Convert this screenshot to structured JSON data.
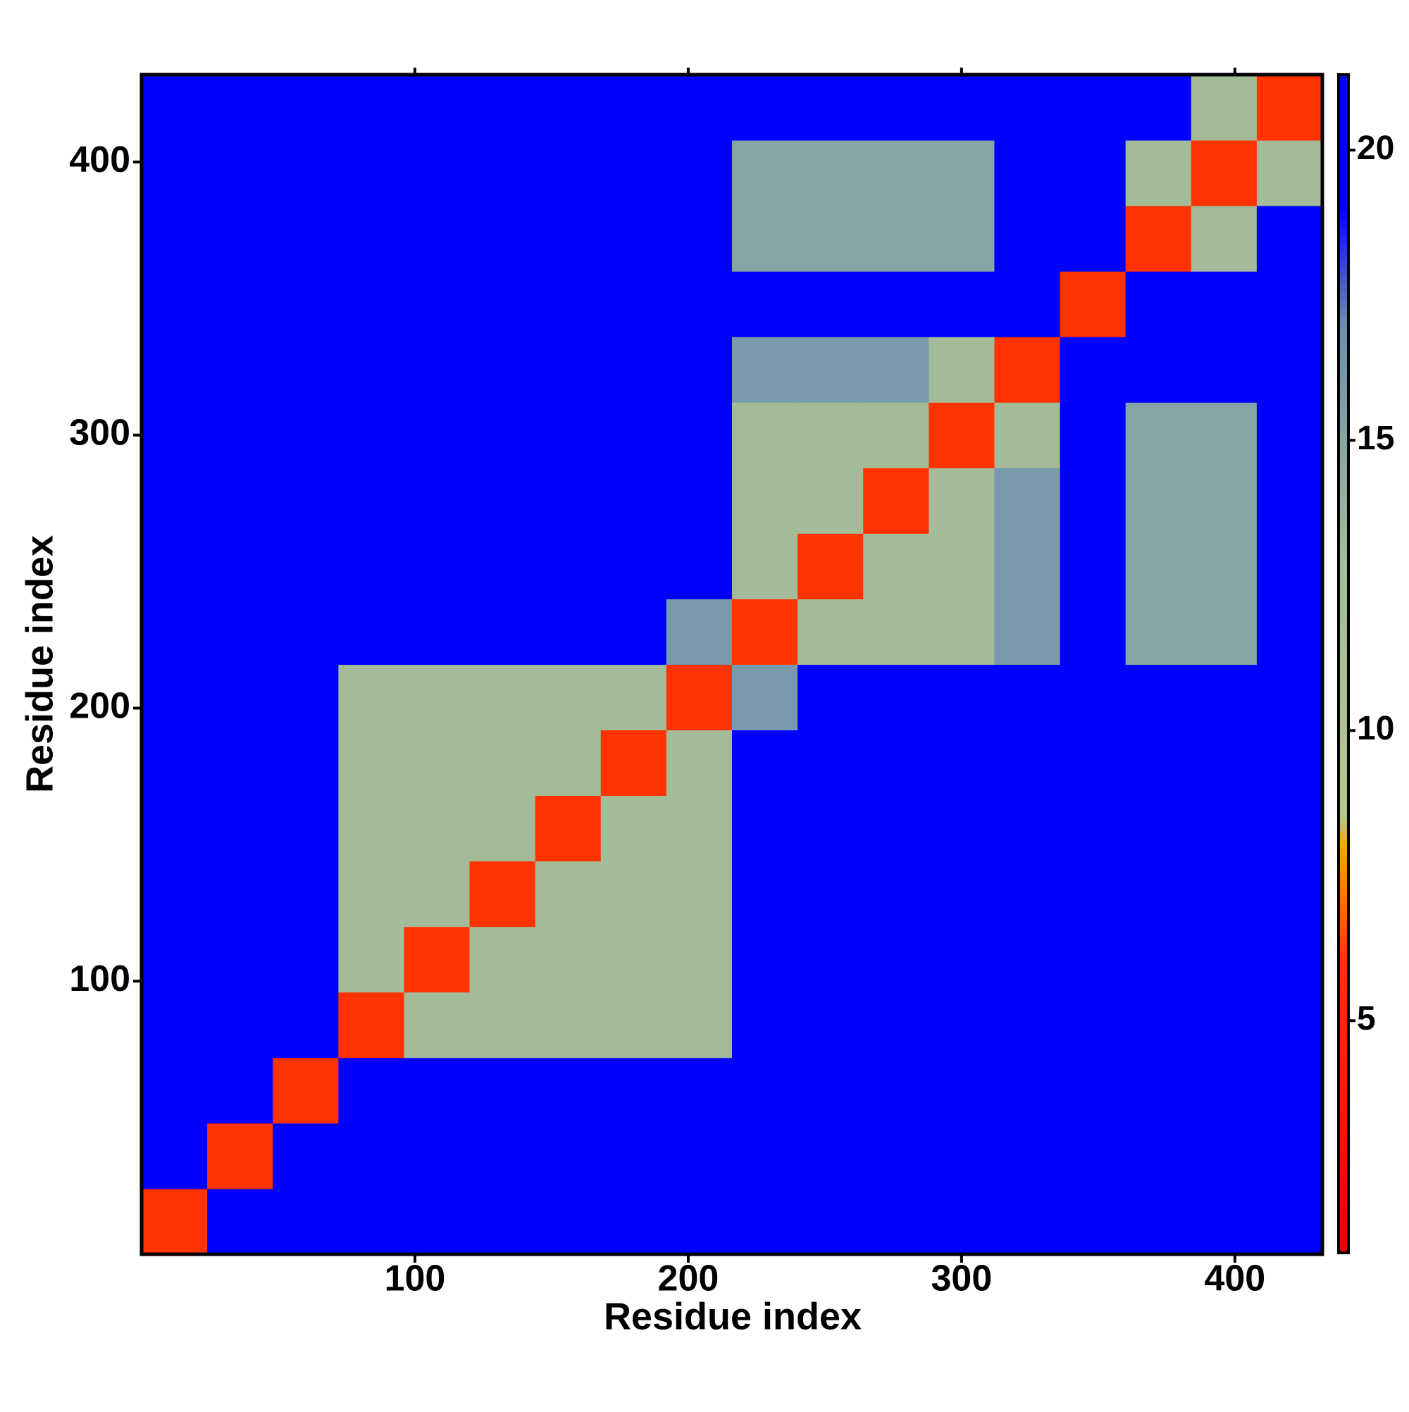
{
  "chart_data": {
    "type": "heatmap",
    "x_label": "Residue index",
    "y_label": "Residue index",
    "bins": [
      0,
      24,
      48,
      72,
      96,
      120,
      144,
      168,
      192,
      216,
      240,
      264,
      288,
      312,
      336,
      360,
      384,
      408,
      432
    ],
    "xlim": [
      0,
      432
    ],
    "ylim": [
      0,
      432
    ],
    "xticks": [
      100,
      200,
      300,
      400
    ],
    "yticks": [
      100,
      200,
      300,
      400
    ],
    "values": [
      [
        6,
        21,
        21,
        21,
        21,
        21,
        21,
        21,
        21,
        21,
        21,
        21,
        21,
        21,
        21,
        21,
        21,
        21
      ],
      [
        21,
        6,
        21,
        21,
        21,
        21,
        21,
        21,
        21,
        21,
        21,
        21,
        21,
        21,
        21,
        21,
        21,
        21
      ],
      [
        21,
        21,
        6,
        21,
        21,
        21,
        21,
        21,
        21,
        21,
        21,
        21,
        21,
        21,
        21,
        21,
        21,
        21
      ],
      [
        21,
        21,
        21,
        6,
        13,
        13,
        13,
        13,
        13,
        21,
        21,
        21,
        21,
        21,
        21,
        21,
        21,
        21
      ],
      [
        21,
        21,
        21,
        13,
        6,
        13,
        13,
        13,
        13,
        21,
        21,
        21,
        21,
        21,
        21,
        21,
        21,
        21
      ],
      [
        21,
        21,
        21,
        13,
        13,
        6,
        13,
        13,
        13,
        21,
        21,
        21,
        21,
        21,
        21,
        21,
        21,
        21
      ],
      [
        21,
        21,
        21,
        13,
        13,
        13,
        6,
        13,
        13,
        21,
        21,
        21,
        21,
        21,
        21,
        21,
        21,
        21
      ],
      [
        21,
        21,
        21,
        13,
        13,
        13,
        13,
        6,
        13,
        21,
        21,
        21,
        21,
        21,
        21,
        21,
        21,
        21
      ],
      [
        21,
        21,
        21,
        13,
        13,
        13,
        13,
        13,
        6,
        16,
        21,
        21,
        21,
        21,
        21,
        21,
        21,
        21
      ],
      [
        21,
        21,
        21,
        21,
        21,
        21,
        21,
        21,
        16,
        6,
        13,
        13,
        13,
        16,
        21,
        15,
        15,
        21
      ],
      [
        21,
        21,
        21,
        21,
        21,
        21,
        21,
        21,
        21,
        13,
        6,
        13,
        13,
        16,
        21,
        15,
        15,
        21
      ],
      [
        21,
        21,
        21,
        21,
        21,
        21,
        21,
        21,
        21,
        13,
        13,
        6,
        13,
        16,
        21,
        15,
        15,
        21
      ],
      [
        21,
        21,
        21,
        21,
        21,
        21,
        21,
        21,
        21,
        13,
        13,
        13,
        6,
        13,
        21,
        15,
        15,
        21
      ],
      [
        21,
        21,
        21,
        21,
        21,
        21,
        21,
        21,
        21,
        16,
        16,
        16,
        13,
        6,
        21,
        21,
        21,
        21
      ],
      [
        21,
        21,
        21,
        21,
        21,
        21,
        21,
        21,
        21,
        21,
        21,
        21,
        21,
        21,
        6,
        21,
        21,
        21
      ],
      [
        21,
        21,
        21,
        21,
        21,
        21,
        21,
        21,
        21,
        15,
        15,
        15,
        15,
        21,
        21,
        6,
        13,
        21
      ],
      [
        21,
        21,
        21,
        21,
        21,
        21,
        21,
        21,
        21,
        15,
        15,
        15,
        15,
        21,
        21,
        13,
        6,
        13
      ],
      [
        21,
        21,
        21,
        21,
        21,
        21,
        21,
        21,
        21,
        21,
        21,
        21,
        21,
        21,
        21,
        21,
        13,
        6
      ]
    ],
    "colorscale": [
      {
        "value": 1,
        "color": "#e60000"
      },
      {
        "value": 6,
        "color": "#ff3300"
      },
      {
        "value": 8,
        "color": "#ffa500"
      },
      {
        "value": 8.5,
        "color": "#b4c88c"
      },
      {
        "value": 13,
        "color": "#a3bb98"
      },
      {
        "value": 17,
        "color": "#6a8fb0"
      },
      {
        "value": 19,
        "color": "#0000ff"
      },
      {
        "value": 21.3,
        "color": "#0000ff"
      }
    ],
    "cticks": [
      5,
      10,
      15,
      20
    ]
  }
}
